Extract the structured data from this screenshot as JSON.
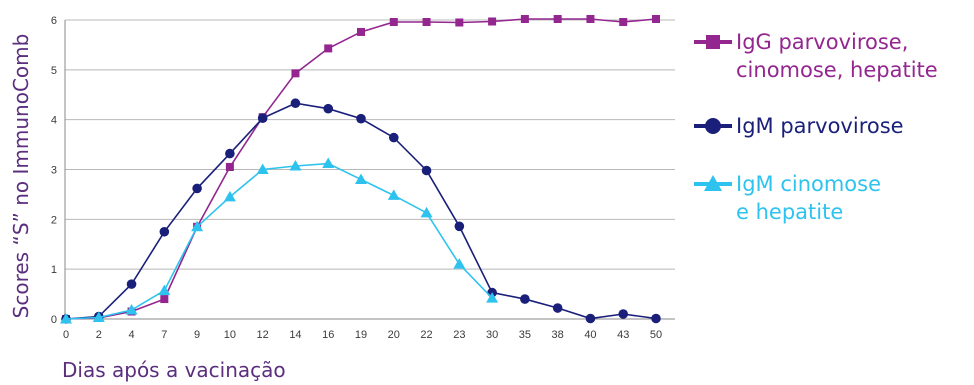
{
  "chart_data": {
    "type": "line",
    "x": [
      "0",
      "2",
      "4",
      "7",
      "9",
      "10",
      "12",
      "14",
      "16",
      "19",
      "20",
      "22",
      "23",
      "30",
      "35",
      "38",
      "40",
      "43",
      "50"
    ],
    "xlabel": "Dias após a vacinação",
    "ylabel": "Scores “S” no ImmunoComb",
    "ylim": [
      0,
      6
    ],
    "yticks": [
      "0",
      "1",
      "2",
      "3",
      "4",
      "5",
      "6"
    ],
    "grid": true,
    "legend_position": "right",
    "series": [
      {
        "name": "IgG parvovirose,\ncinomose, hepatite",
        "color": "#93268f",
        "marker": "square",
        "values": [
          0,
          0.02,
          0.15,
          0.4,
          1.85,
          3.05,
          4.05,
          4.93,
          5.43,
          5.76,
          5.96,
          5.96,
          5.95,
          5.97,
          6.02,
          6.02,
          6.02,
          5.96,
          6.02
        ]
      },
      {
        "name": "IgM parvovirose",
        "color": "#1a1f7a",
        "marker": "circle",
        "values": [
          0,
          0.05,
          0.7,
          1.75,
          2.62,
          3.32,
          4.03,
          4.33,
          4.22,
          4.02,
          3.64,
          2.98,
          1.86,
          0.53,
          0.4,
          0.22,
          0.01,
          0.1,
          0.01
        ]
      },
      {
        "name": "IgM cinomose\ne hepatite",
        "color": "#2ec3ef",
        "marker": "triangle",
        "values": [
          0,
          0.03,
          0.18,
          0.57,
          1.85,
          2.45,
          3.0,
          3.07,
          3.12,
          2.8,
          2.48,
          2.13,
          1.1,
          0.42,
          null,
          null,
          null,
          null,
          null
        ]
      }
    ]
  }
}
